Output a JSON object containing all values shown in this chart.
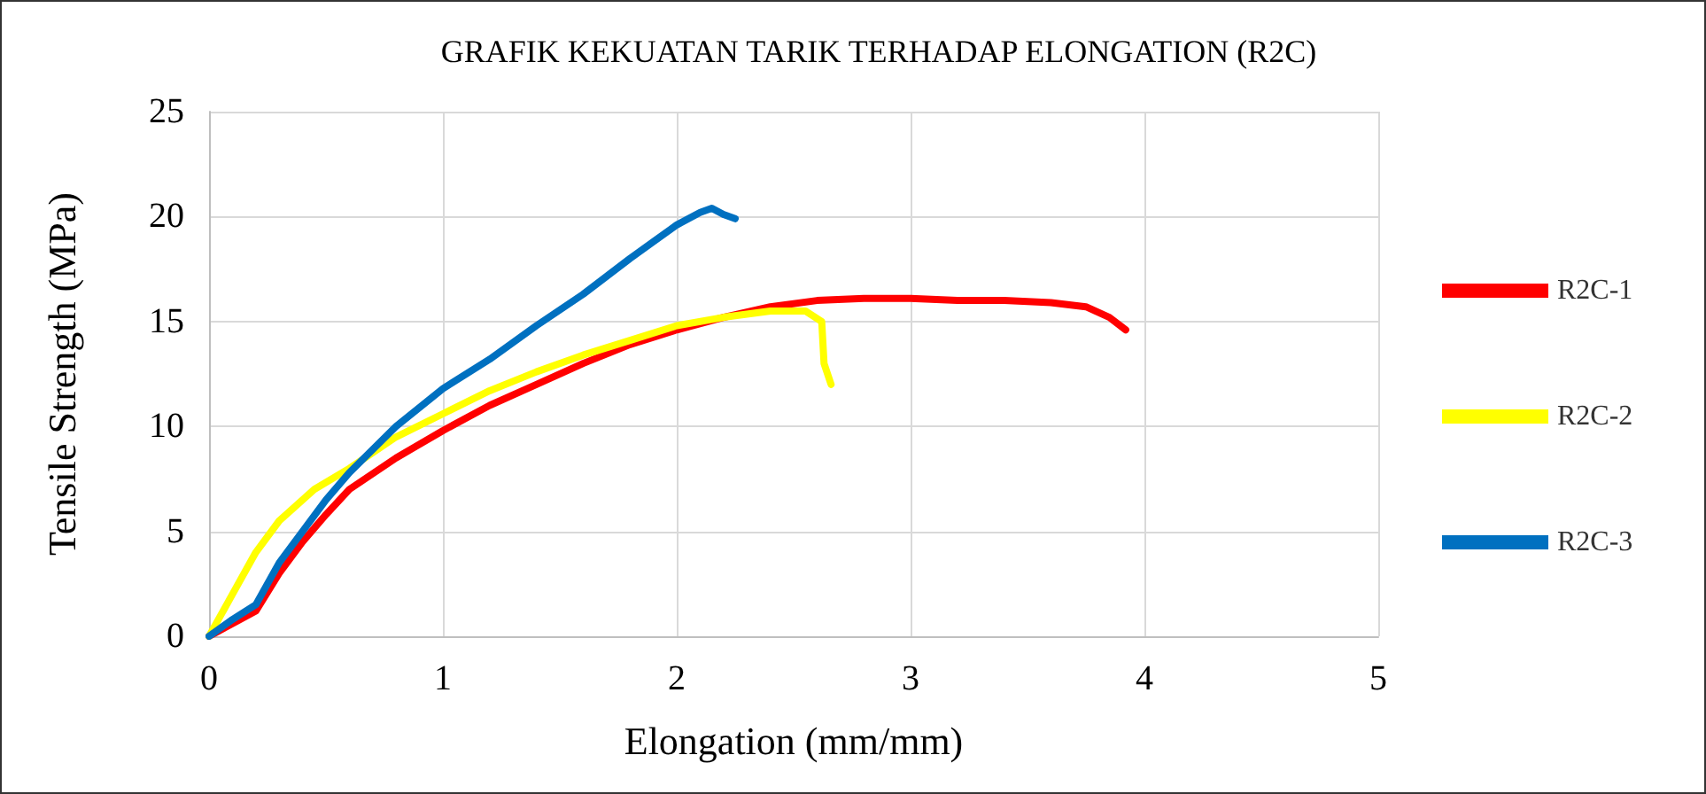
{
  "chart_data": {
    "type": "line",
    "title": "GRAFIK KEKUATAN TARIK TERHADAP ELONGATION (R2C)",
    "xlabel": "Elongation (mm/mm)",
    "ylabel": "Tensile Strength (MPa)",
    "xlim": [
      0,
      5
    ],
    "xticks": [
      0,
      1,
      2,
      3,
      4,
      5
    ],
    "ylim": [
      0,
      25
    ],
    "yticks": [
      0,
      5,
      10,
      15,
      20,
      25
    ],
    "grid": true,
    "legend": "right",
    "marker": "none",
    "line_style": "solid",
    "series": [
      {
        "name": "R2C-1",
        "color": "#ff0000",
        "x": [
          0,
          0.1,
          0.2,
          0.3,
          0.4,
          0.5,
          0.6,
          0.8,
          1.0,
          1.2,
          1.4,
          1.6,
          1.8,
          2.0,
          2.2,
          2.4,
          2.6,
          2.8,
          3.0,
          3.2,
          3.4,
          3.6,
          3.75,
          3.85,
          3.92
        ],
        "values": [
          0,
          0.6,
          1.2,
          3,
          4.5,
          5.8,
          7,
          8.5,
          9.8,
          11,
          12,
          13,
          13.9,
          14.6,
          15.2,
          15.7,
          16,
          16.1,
          16.1,
          16,
          16,
          15.9,
          15.7,
          15.2,
          14.6
        ]
      },
      {
        "name": "R2C-2",
        "color": "#ffff00",
        "x": [
          0,
          0.1,
          0.2,
          0.3,
          0.45,
          0.6,
          0.8,
          1.0,
          1.2,
          1.4,
          1.6,
          1.8,
          2.0,
          2.2,
          2.4,
          2.55,
          2.62,
          2.63,
          2.66
        ],
        "values": [
          0,
          2,
          4,
          5.5,
          7,
          8,
          9.5,
          10.6,
          11.7,
          12.6,
          13.4,
          14.1,
          14.8,
          15.2,
          15.5,
          15.5,
          15,
          13,
          12
        ]
      },
      {
        "name": "R2C-3",
        "color": "#0070c0",
        "x": [
          0,
          0.1,
          0.2,
          0.3,
          0.4,
          0.5,
          0.6,
          0.8,
          1.0,
          1.2,
          1.4,
          1.6,
          1.8,
          1.9,
          2.0,
          2.1,
          2.15,
          2.2,
          2.25
        ],
        "values": [
          0,
          0.8,
          1.5,
          3.5,
          5,
          6.5,
          7.8,
          10,
          11.8,
          13.2,
          14.8,
          16.3,
          18,
          18.8,
          19.6,
          20.2,
          20.4,
          20.1,
          19.9
        ]
      }
    ]
  }
}
